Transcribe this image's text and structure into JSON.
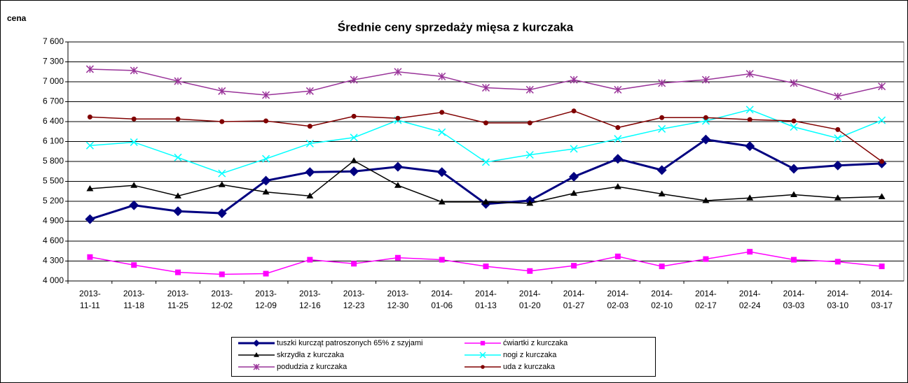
{
  "chart_data": {
    "type": "line",
    "title": "Średnie ceny sprzedaży mięsa z kurczaka",
    "y_label": "cena",
    "categories": [
      "2013-11-11",
      "2013-11-18",
      "2013-11-25",
      "2013-12-02",
      "2013-12-09",
      "2013-12-16",
      "2013-12-23",
      "2013-12-30",
      "2014-01-06",
      "2014-01-13",
      "2014-01-20",
      "2014-01-27",
      "2014-02-03",
      "2014-02-10",
      "2014-02-17",
      "2014-02-24",
      "2014-03-03",
      "2014-03-10",
      "2014-03-17"
    ],
    "series": [
      {
        "name": "tuszki kurcząt patroszonych 65% z szyjami",
        "color": "#000080",
        "marker": "diamond",
        "values": [
          4930,
          5140,
          5050,
          5020,
          5510,
          5640,
          5650,
          5720,
          5640,
          5160,
          5210,
          5570,
          5840,
          5670,
          6130,
          6030,
          5690,
          5740,
          5770
        ]
      },
      {
        "name": "ćwiartki z kurczaka",
        "color": "#ff00ff",
        "marker": "square",
        "values": [
          4360,
          4240,
          4130,
          4100,
          4110,
          4320,
          4260,
          4350,
          4320,
          4220,
          4150,
          4230,
          4370,
          4220,
          4330,
          4440,
          4320,
          4290,
          4220
        ]
      },
      {
        "name": "skrzydła z kurczaka",
        "color": "#000000",
        "marker": "triangle",
        "values": [
          5390,
          5440,
          5280,
          5450,
          5340,
          5280,
          5810,
          5440,
          5190,
          5190,
          5170,
          5320,
          5420,
          5310,
          5210,
          5250,
          5300,
          5250,
          5270
        ]
      },
      {
        "name": "nogi z kurczaka",
        "color": "#00ffff",
        "marker": "x",
        "values": [
          6040,
          6090,
          5860,
          5620,
          5840,
          6070,
          6160,
          6420,
          6240,
          5790,
          5900,
          5990,
          6140,
          6290,
          6410,
          6580,
          6320,
          6150,
          6420
        ]
      },
      {
        "name": "podudzia z kurczaka",
        "color": "#993399",
        "marker": "star",
        "values": [
          7190,
          7170,
          7010,
          6860,
          6800,
          6860,
          7030,
          7150,
          7080,
          6910,
          6880,
          7030,
          6880,
          6980,
          7030,
          7120,
          6980,
          6780,
          6930
        ]
      },
      {
        "name": "uda z kurczaka",
        "color": "#800000",
        "marker": "circle",
        "values": [
          6470,
          6440,
          6440,
          6400,
          6410,
          6330,
          6480,
          6450,
          6540,
          6380,
          6380,
          6560,
          6310,
          6460,
          6460,
          6430,
          6410,
          6280,
          5800
        ]
      }
    ],
    "ylim": [
      4000,
      7600
    ],
    "yticks": [
      {
        "value": 4000,
        "label": "4 000"
      },
      {
        "value": 4300,
        "label": "4 300"
      },
      {
        "value": 4600,
        "label": "4 600"
      },
      {
        "value": 4900,
        "label": "4 900"
      },
      {
        "value": 5200,
        "label": "5 200"
      },
      {
        "value": 5500,
        "label": "5 500"
      },
      {
        "value": 5800,
        "label": "5 800"
      },
      {
        "value": 6100,
        "label": "6 100"
      },
      {
        "value": 6400,
        "label": "6 400"
      },
      {
        "value": 6700,
        "label": "6 700"
      },
      {
        "value": 7000,
        "label": "7 000"
      },
      {
        "value": 7300,
        "label": "7 300"
      },
      {
        "value": 7600,
        "label": "7 600"
      }
    ],
    "grid": true
  }
}
